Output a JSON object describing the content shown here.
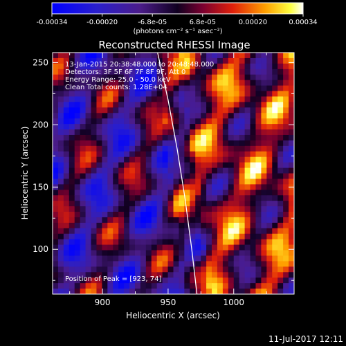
{
  "colorbar": {
    "ticks": [
      "-0.00034",
      "-0.00020",
      "-6.8e-05",
      "6.8e-05",
      "0.00020",
      "0.00034"
    ],
    "unit_label": "(photons cm⁻² s⁻¹ asec⁻²)"
  },
  "chart_data": {
    "type": "heatmap",
    "title": "Reconstructed RHESSI Image",
    "xlabel": "Heliocentric X (arcsec)",
    "ylabel": "Heliocentric Y (arcsec)",
    "xlim": [
      862,
      1046
    ],
    "ylim": [
      64,
      258
    ],
    "xticks": [
      900,
      950,
      1000
    ],
    "yticks": [
      100,
      150,
      200,
      250
    ],
    "value_range": [
      -0.00034,
      0.00034
    ],
    "colormap": "blue-purple-red-yellow-white",
    "annotations": [
      "13-Jan-2015 20:38:48.000 to 20:48:48.000",
      "Detectors: 3F 5F 6F 7F 8F 9F, Att 0",
      "Energy Range: 25.0 - 50.0 keV",
      "Clean     Total counts: 1.28E+04",
      "Position of Peak = [923, 74]"
    ],
    "peak": [
      923,
      74
    ],
    "limb": [
      [
        942,
        258
      ],
      [
        950,
        220
      ],
      [
        957,
        180
      ],
      [
        963,
        140
      ],
      [
        968,
        100
      ],
      [
        972,
        64
      ]
    ]
  },
  "footer": {
    "timestamp": "11-Jul-2017 12:11"
  },
  "colors": {
    "background": "#000000",
    "limb": "#ffffff",
    "text": "#ffffff"
  }
}
